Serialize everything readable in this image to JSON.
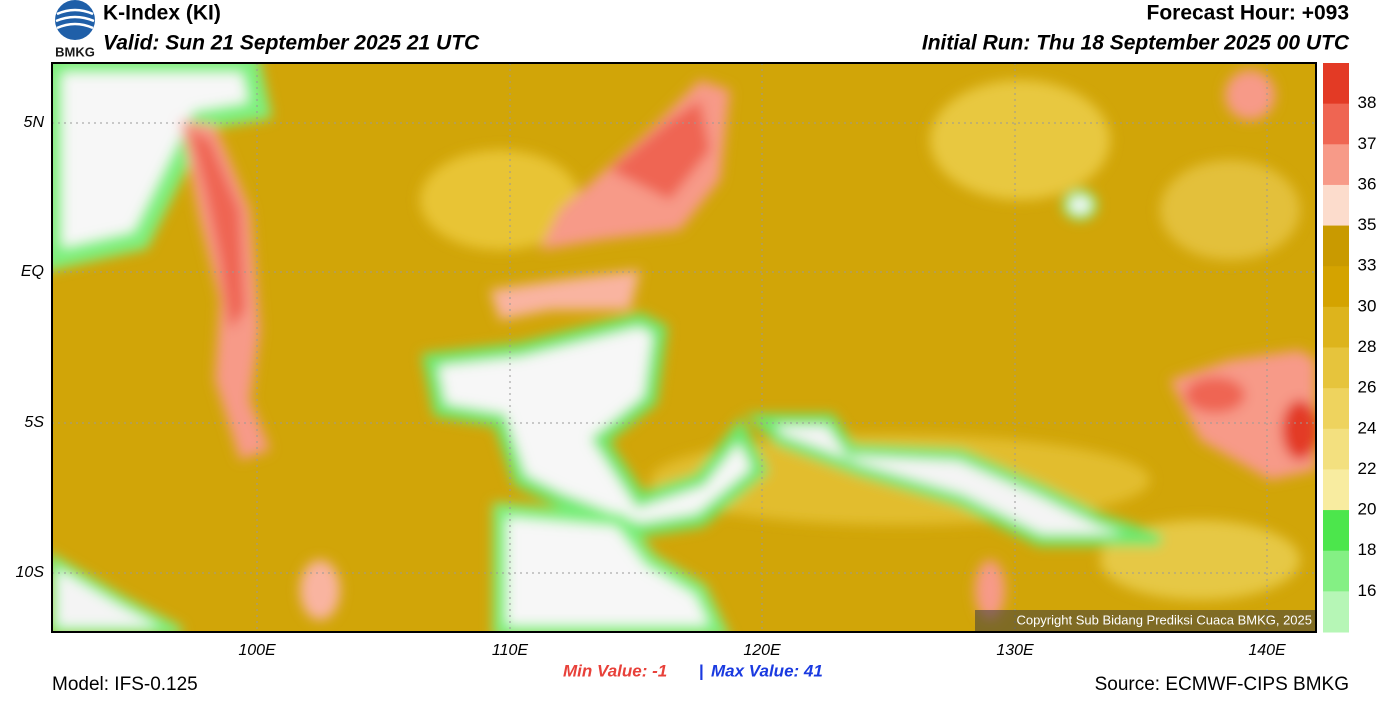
{
  "header": {
    "title": "K-Index (KI)",
    "valid": "Valid: Sun 21 September 2025 21 UTC",
    "forecast_hour": "Forecast Hour: +093",
    "initial_run": "Initial Run: Thu 18 September 2025 00 UTC",
    "logo": "BMKG"
  },
  "map": {
    "lat_labels": [
      "5N",
      "EQ",
      "5S",
      "10S"
    ],
    "lon_labels": [
      "100E",
      "110E",
      "120E",
      "130E",
      "140E"
    ],
    "copyright": "Copyright Sub Bidang Prediksi Cuaca BMKG, 2025"
  },
  "colorbar": {
    "labels": [
      38,
      37,
      36,
      35,
      33,
      30,
      28,
      26,
      24,
      22,
      20,
      18,
      16
    ],
    "colors": [
      "#e33a25",
      "#ef6552",
      "#f79a88",
      "#fcdccc",
      "#c99a00",
      "#d4a300",
      "#ddb41c",
      "#e6c43c",
      "#eed35e",
      "#f3e07f",
      "#f8eca0",
      "#4ce64c",
      "#84f084",
      "#b6f6b6"
    ]
  },
  "stats": {
    "min": "Min Value:  -1",
    "separator": "|",
    "max": "Max Value:  41"
  },
  "footer": {
    "model": "Model: IFS-0.125",
    "source": "Source: ECMWF-CIPS BMKG"
  }
}
